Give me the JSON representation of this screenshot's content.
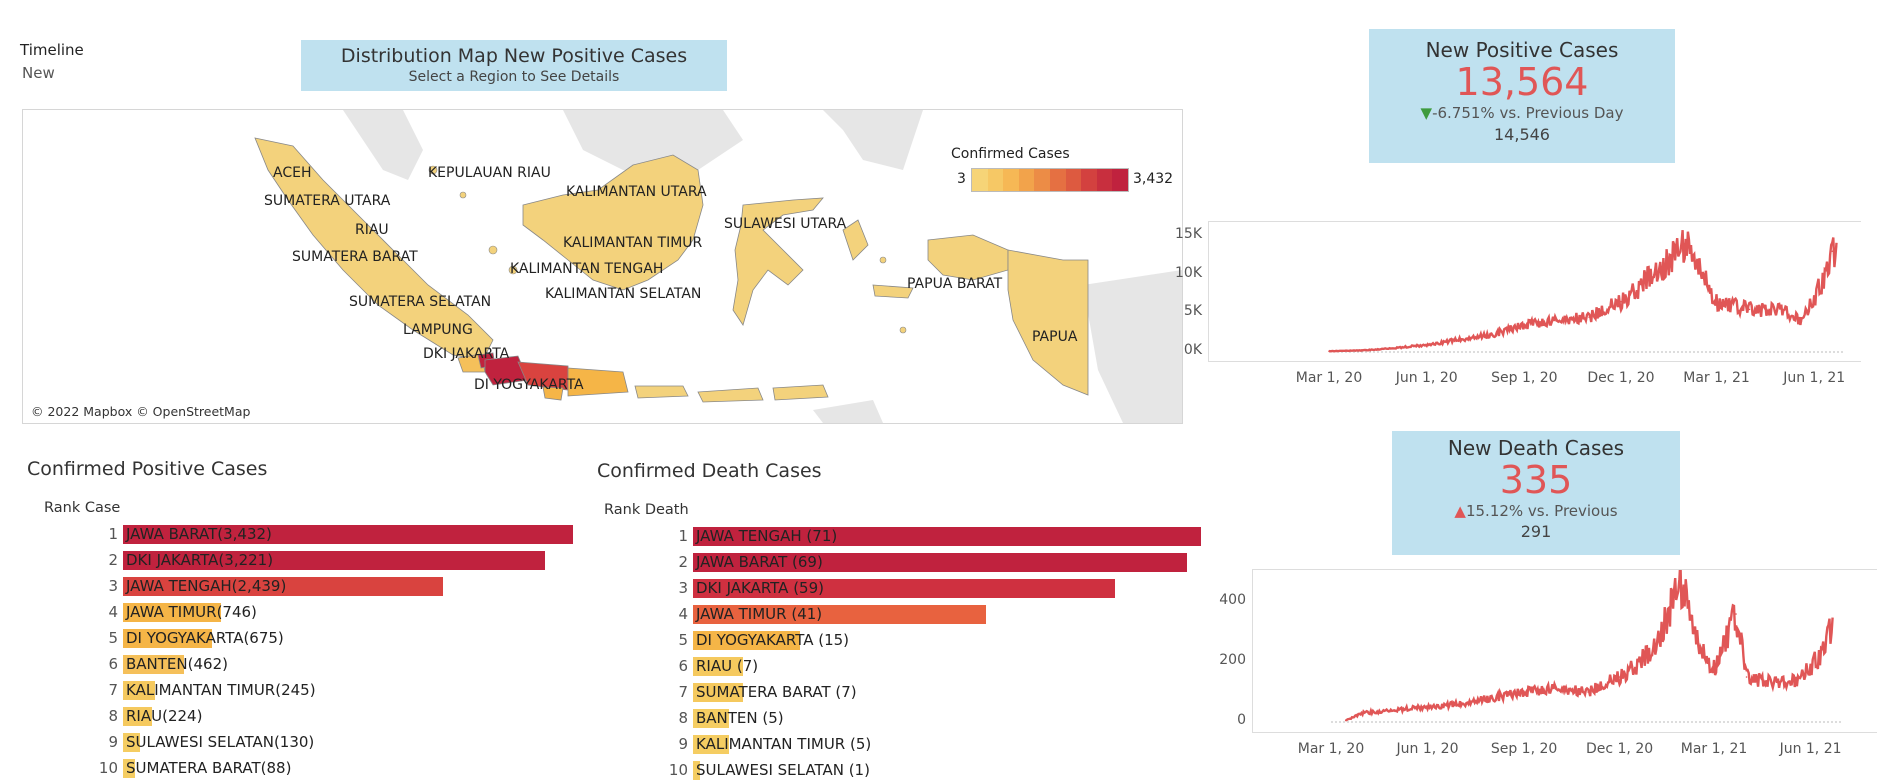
{
  "timeline": {
    "title": "Timeline",
    "value": "New"
  },
  "map": {
    "title": "Distribution Map New Positive Cases",
    "subtitle": "Select a Region to See Details",
    "credit": "© 2022 Mapbox © OpenStreetMap",
    "legend": {
      "title": "Confirmed Cases",
      "min": "3",
      "max": "3,432"
    },
    "labels": {
      "aceh": "ACEH",
      "kepulauan_riau": "KEPULAUAN RIAU",
      "kalimantan_utara": "KALIMANTAN UTARA",
      "sumatera_utara": "SUMATERA UTARA",
      "riau": "RIAU",
      "sulawesi_utara": "SULAWESI UTARA",
      "kalimantan_timur": "KALIMANTAN TIMUR",
      "sumatera_barat": "SUMATERA BARAT",
      "kalimantan_tengah": "KALIMANTAN TENGAH",
      "papua_barat": "PAPUA BARAT",
      "kalimantan_selatan": "KALIMANTAN SELATAN",
      "sumatera_selatan": "SUMATERA SELATAN",
      "lampung": "LAMPUNG",
      "papua": "PAPUA",
      "dki_jakarta": "DKI JAKARTA",
      "di_yogyakarta": "DI YOGYAKARTA"
    }
  },
  "positive_kpi": {
    "title": "New Positive Cases",
    "value": "13,564",
    "arrow": "▼",
    "change": "-6.751% vs. Previous Day",
    "previous": "14,546"
  },
  "death_kpi": {
    "title": "New Death Cases",
    "value": "335",
    "arrow": "▲",
    "change": "15.12% vs. Previous",
    "previous": "291"
  },
  "positive_ranking": {
    "title": "Confirmed Positive Cases",
    "header": "Rank Case",
    "rows": [
      {
        "rank": "1",
        "label": "JAWA BARAT(3,432)",
        "value": 3432,
        "color": "#c0223e"
      },
      {
        "rank": "2",
        "label": "DKI JAKARTA(3,221)",
        "value": 3221,
        "color": "#c0223e"
      },
      {
        "rank": "3",
        "label": "JAWA TENGAH(2,439)",
        "value": 2439,
        "color": "#d9433f"
      },
      {
        "rank": "4",
        "label": "JAWA TIMUR(746)",
        "value": 746,
        "color": "#f5b547"
      },
      {
        "rank": "5",
        "label": "DI YOGYAKARTA(675)",
        "value": 675,
        "color": "#f5b547"
      },
      {
        "rank": "6",
        "label": "BANTEN(462)",
        "value": 462,
        "color": "#f5c05a"
      },
      {
        "rank": "7",
        "label": "KALIMANTAN TIMUR(245)",
        "value": 245,
        "color": "#f5c95e"
      },
      {
        "rank": "8",
        "label": "RIAU(224)",
        "value": 224,
        "color": "#f5c95e"
      },
      {
        "rank": "9",
        "label": "SULAWESI SELATAN(130)",
        "value": 130,
        "color": "#f5cd62"
      },
      {
        "rank": "10",
        "label": "SUMATERA BARAT(88)",
        "value": 88,
        "color": "#f5cd62"
      }
    ]
  },
  "death_ranking": {
    "title": "Confirmed Death Cases",
    "header": "Rank Death",
    "rows": [
      {
        "rank": "1",
        "label": "JAWA TENGAH (71)",
        "value": 71,
        "color": "#c0223e"
      },
      {
        "rank": "2",
        "label": "JAWA BARAT (69)",
        "value": 69,
        "color": "#c0223e"
      },
      {
        "rank": "3",
        "label": "DKI JAKARTA (59)",
        "value": 59,
        "color": "#cf3040"
      },
      {
        "rank": "4",
        "label": "JAWA TIMUR (41)",
        "value": 41,
        "color": "#e8623f"
      },
      {
        "rank": "5",
        "label": "DI YOGYAKARTA (15)",
        "value": 15,
        "color": "#f5b547"
      },
      {
        "rank": "6",
        "label": "RIAU (7)",
        "value": 7,
        "color": "#f5c95e"
      },
      {
        "rank": "7",
        "label": "SUMATERA BARAT (7)",
        "value": 7,
        "color": "#f5c95e"
      },
      {
        "rank": "8",
        "label": "BANTEN (5)",
        "value": 5,
        "color": "#f5cd62"
      },
      {
        "rank": "9",
        "label": "KALIMANTAN TIMUR (5)",
        "value": 5,
        "color": "#f5cd62"
      },
      {
        "rank": "10",
        "label": "SULAWESI SELATAN (1)",
        "value": 1,
        "color": "#f5cd62"
      }
    ]
  },
  "chart_data": [
    {
      "type": "line",
      "name": "positive-trend",
      "yticks": [
        "15K",
        "10K",
        "5K",
        "0K"
      ],
      "ytick_values": [
        15000,
        10000,
        5000,
        0
      ],
      "xticks": [
        "Mar 1, 20",
        "Jun 1, 20",
        "Sep 1, 20",
        "Dec 1, 20",
        "Mar 1, 21",
        "Jun 1, 21"
      ],
      "ylim": [
        0,
        16000
      ],
      "color": "#e05656",
      "x": [
        "2020-03-01",
        "2020-04-01",
        "2020-05-01",
        "2020-06-01",
        "2020-07-01",
        "2020-08-01",
        "2020-09-01",
        "2020-10-01",
        "2020-11-01",
        "2020-12-01",
        "2021-01-01",
        "2021-01-30",
        "2021-02-15",
        "2021-03-01",
        "2021-04-01",
        "2021-05-01",
        "2021-05-20",
        "2021-06-01",
        "2021-06-10",
        "2021-06-18",
        "2021-06-22"
      ],
      "y": [
        100,
        200,
        500,
        900,
        1600,
        2200,
        3500,
        4000,
        4500,
        6500,
        10000,
        14000,
        10000,
        6500,
        5500,
        5500,
        4000,
        7000,
        9500,
        13000,
        13564
      ]
    },
    {
      "type": "line",
      "name": "death-trend",
      "yticks": [
        "400",
        "200",
        "0"
      ],
      "ytick_values": [
        400,
        200,
        0
      ],
      "xticks": [
        "Mar 1, 20",
        "Jun 1, 20",
        "Sep 1, 20",
        "Dec 1, 20",
        "Mar 1, 21",
        "Jun 1, 21"
      ],
      "ylim": [
        0,
        480
      ],
      "color": "#e05656",
      "x": [
        "2020-03-15",
        "2020-04-01",
        "2020-05-01",
        "2020-06-01",
        "2020-07-01",
        "2020-08-01",
        "2020-09-01",
        "2020-10-01",
        "2020-11-01",
        "2020-12-01",
        "2021-01-01",
        "2021-01-28",
        "2021-02-15",
        "2021-03-01",
        "2021-03-22",
        "2021-04-01",
        "2021-05-01",
        "2021-05-20",
        "2021-06-10",
        "2021-06-22"
      ],
      "y": [
        5,
        30,
        40,
        50,
        60,
        80,
        100,
        110,
        100,
        150,
        230,
        470,
        240,
        180,
        360,
        150,
        130,
        140,
        220,
        335
      ]
    }
  ]
}
